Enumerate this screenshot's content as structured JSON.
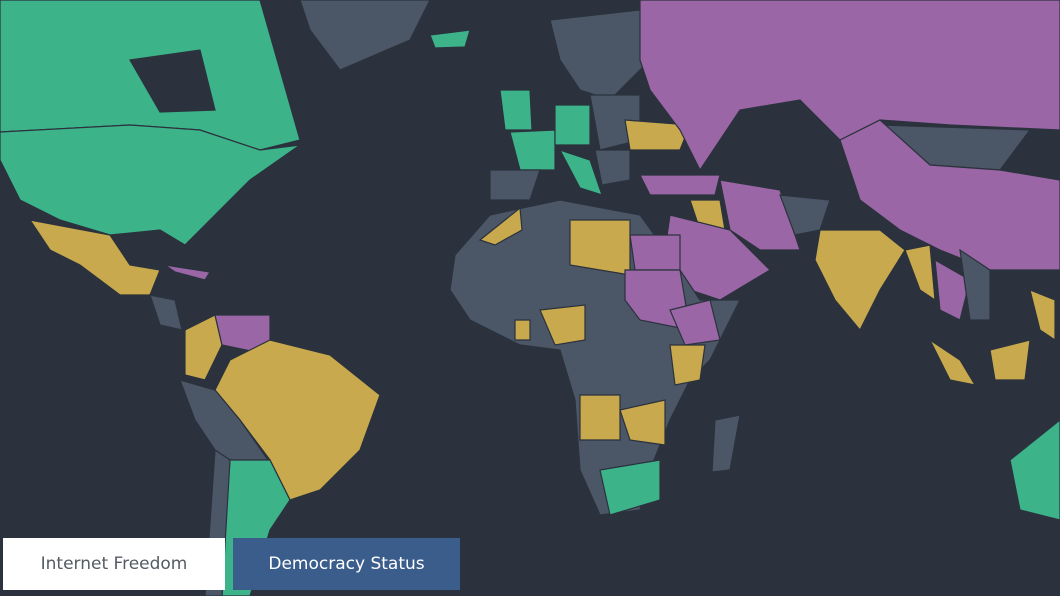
{
  "buttons": [
    {
      "label": "Internet Freedom"
    },
    {
      "label": "Democracy Status"
    }
  ]
}
